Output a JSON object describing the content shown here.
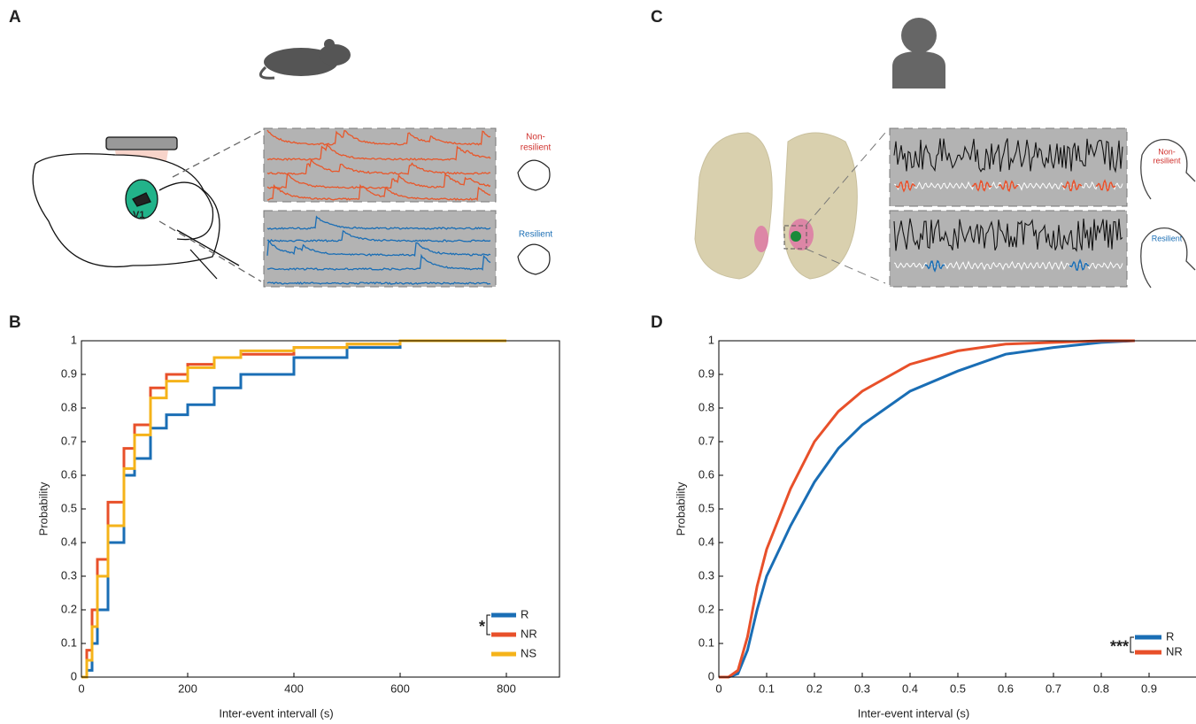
{
  "panel_labels": [
    "A",
    "B",
    "C",
    "D"
  ],
  "labels": {
    "v1": "V1",
    "mouse_nonresilient": [
      "Non-",
      "resilient"
    ],
    "mouse_resilient": "Resilient",
    "human_nonresilient": [
      "Non-",
      "resilient"
    ],
    "human_resilient": "Resilient"
  },
  "chart_data": [
    {
      "type": "line",
      "step": true,
      "xlabel": "Inter-event intervall (s)",
      "ylabel": "Probability",
      "x": [
        0,
        10,
        20,
        30,
        50,
        80,
        100,
        130,
        160,
        200,
        250,
        300,
        400,
        500,
        600,
        700,
        800
      ],
      "series": [
        {
          "name": "R",
          "color": "#1a6eb5",
          "values": [
            0,
            0.02,
            0.1,
            0.2,
            0.4,
            0.6,
            0.65,
            0.74,
            0.78,
            0.81,
            0.86,
            0.9,
            0.95,
            0.98,
            1,
            1,
            1
          ]
        },
        {
          "name": "NR",
          "color": "#e8502a",
          "values": [
            0,
            0.08,
            0.2,
            0.35,
            0.52,
            0.68,
            0.75,
            0.86,
            0.9,
            0.93,
            0.95,
            0.96,
            0.98,
            0.99,
            1,
            1,
            null
          ]
        },
        {
          "name": "NS",
          "color": "#f5b31a",
          "values": [
            0,
            0.05,
            0.15,
            0.3,
            0.45,
            0.62,
            0.72,
            0.83,
            0.88,
            0.92,
            0.95,
            0.97,
            0.98,
            0.99,
            1,
            1,
            1
          ]
        }
      ],
      "significance": "*",
      "legend": "lower right",
      "xlim": [
        0,
        900
      ],
      "ylim": [
        0,
        1
      ],
      "xticks": [
        0,
        200,
        400,
        600,
        800
      ],
      "yticks": [
        0,
        0.1,
        0.2,
        0.3,
        0.4,
        0.5,
        0.6,
        0.7,
        0.8,
        0.9,
        1
      ]
    },
    {
      "type": "line",
      "step": false,
      "xlabel": "Inter-event interval (s)",
      "ylabel": "Probability",
      "x": [
        0,
        0.02,
        0.04,
        0.06,
        0.08,
        0.1,
        0.15,
        0.2,
        0.25,
        0.3,
        0.4,
        0.5,
        0.6,
        0.7,
        0.8,
        0.87
      ],
      "series": [
        {
          "name": "R",
          "color": "#1a6eb5",
          "values": [
            0,
            0,
            0.01,
            0.08,
            0.2,
            0.3,
            0.45,
            0.58,
            0.68,
            0.75,
            0.85,
            0.91,
            0.96,
            0.98,
            0.995,
            1
          ]
        },
        {
          "name": "NR",
          "color": "#e8502a",
          "values": [
            0,
            0,
            0.02,
            0.12,
            0.27,
            0.38,
            0.56,
            0.7,
            0.79,
            0.85,
            0.93,
            0.97,
            0.99,
            0.995,
            1,
            1
          ]
        }
      ],
      "significance": "***",
      "legend": "lower right",
      "xlim": [
        0,
        1
      ],
      "ylim": [
        0,
        1
      ],
      "xticks": [
        0,
        0.1,
        0.2,
        0.3,
        0.4,
        0.5,
        0.6,
        0.7,
        0.8,
        0.9
      ],
      "yticks": [
        0,
        0.1,
        0.2,
        0.3,
        0.4,
        0.5,
        0.6,
        0.7,
        0.8,
        0.9,
        1
      ]
    }
  ]
}
